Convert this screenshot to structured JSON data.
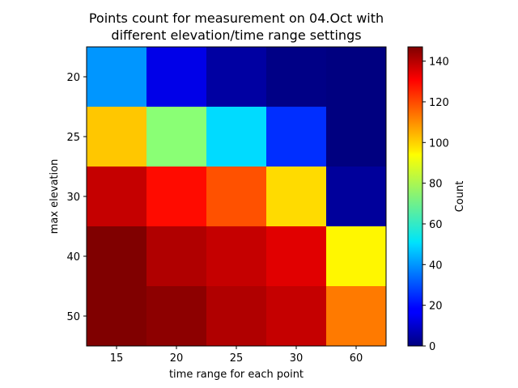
{
  "chart_data": {
    "type": "heatmap",
    "title_line1": "Points count for measurement on 04.Oct with",
    "title_line2": "different elevation/time range settings",
    "xlabel": "time range for each point",
    "ylabel": "max elevation",
    "x_categories": [
      "15",
      "20",
      "25",
      "30",
      "60"
    ],
    "y_categories": [
      "20",
      "25",
      "30",
      "40",
      "50"
    ],
    "values": [
      [
        40,
        15,
        5,
        1,
        0
      ],
      [
        100,
        75,
        50,
        25,
        0
      ],
      [
        137,
        127,
        117,
        97,
        4
      ],
      [
        147,
        140,
        137,
        133,
        93
      ],
      [
        147,
        145,
        140,
        137,
        111
      ]
    ],
    "colormap": "jet",
    "vmin": 0,
    "vmax": 147,
    "colorbar": {
      "label": "Count",
      "ticks": [
        0,
        20,
        40,
        60,
        80,
        100,
        120,
        140
      ]
    }
  }
}
